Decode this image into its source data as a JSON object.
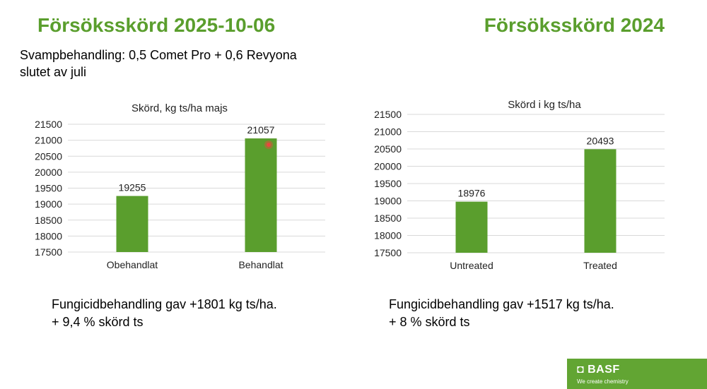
{
  "left": {
    "title": "Försöksskörd 2025-10-06",
    "subtitle_line1": "Svampbehandling: 0,5 Comet Pro + 0,6 Revyona",
    "subtitle_line2": "slutet av juli",
    "note_line1": "Fungicidbehandling gav +1801 kg ts/ha.",
    "note_line2": "+ 9,4 % skörd ts"
  },
  "right": {
    "title": "Försöksskörd 2024",
    "note_line1": "Fungicidbehandling gav +1517 kg ts/ha.",
    "note_line2": "+ 8 % skörd ts"
  },
  "logo": {
    "name": "BASF",
    "tagline": "We create chemistry",
    "color": "#62a533"
  },
  "colors": {
    "title": "#5a9e2d",
    "bar": "#5a9e2d",
    "marker": "#e8483e"
  },
  "chart_data": [
    {
      "type": "bar",
      "title": "Skörd, kg ts/ha majs",
      "categories": [
        "Obehandlat",
        "Behandlat"
      ],
      "values": [
        19255,
        21057
      ],
      "data_labels": [
        "19255",
        "21057"
      ],
      "ylim": [
        17500,
        21500
      ],
      "yticks": [
        17500,
        18000,
        18500,
        19000,
        19500,
        20000,
        20500,
        21000,
        21500
      ],
      "grid": true
    },
    {
      "type": "bar",
      "title": "Skörd i kg ts/ha",
      "categories": [
        "Untreated",
        "Treated"
      ],
      "values": [
        18976,
        20493
      ],
      "data_labels": [
        "18976",
        "20493"
      ],
      "ylim": [
        17500,
        21500
      ],
      "yticks": [
        17500,
        18000,
        18500,
        19000,
        19500,
        20000,
        20500,
        21000,
        21500
      ],
      "grid": true
    }
  ]
}
